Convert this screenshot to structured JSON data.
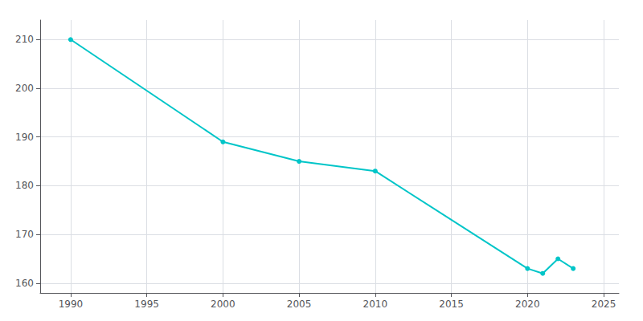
{
  "chart_data": {
    "type": "line",
    "x": [
      1990,
      2000,
      2005,
      2010,
      2020,
      2021,
      2022,
      2023
    ],
    "values": [
      210,
      189,
      185,
      183,
      163,
      162,
      165,
      163
    ],
    "color": "#00c5c8",
    "marker": "circle",
    "xlim": [
      1988,
      2026
    ],
    "xticks": [
      1990,
      1995,
      2000,
      2005,
      2010,
      2015,
      2020,
      2025
    ],
    "ylim": [
      158,
      214
    ],
    "yticks": [
      160,
      170,
      180,
      190,
      200,
      210
    ],
    "grid": true
  }
}
